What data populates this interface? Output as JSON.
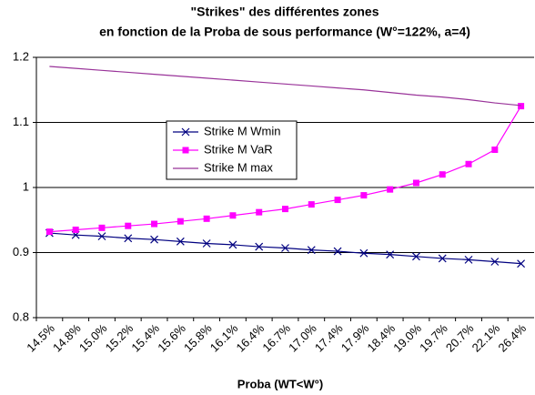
{
  "chart_data": {
    "type": "line",
    "title": [
      "\"Strikes\" des différentes zones",
      "en fonction de la  Proba de sous performance (W°=122%, a=4)"
    ],
    "x_label": "Proba (WT<W°)",
    "categories": [
      "14.5%",
      "14.8%",
      "15.0%",
      "15.2%",
      "15.4%",
      "15.6%",
      "15.8%",
      "16.1%",
      "16.4%",
      "16.7%",
      "17.0%",
      "17.4%",
      "17.9%",
      "18.4%",
      "19.0%",
      "19.7%",
      "20.7%",
      "22.1%",
      "26.4%"
    ],
    "series": [
      {
        "name": "Strike M Wmin",
        "color": "#000080",
        "marker": "x",
        "values": [
          0.93,
          0.927,
          0.925,
          0.922,
          0.92,
          0.917,
          0.914,
          0.912,
          0.909,
          0.907,
          0.904,
          0.902,
          0.899,
          0.897,
          0.894,
          0.891,
          0.889,
          0.886,
          0.883
        ]
      },
      {
        "name": "Strike M VaR",
        "color": "#ff00ff",
        "marker": "square",
        "values": [
          0.932,
          0.935,
          0.938,
          0.941,
          0.944,
          0.948,
          0.952,
          0.957,
          0.962,
          0.967,
          0.974,
          0.981,
          0.988,
          0.997,
          1.007,
          1.02,
          1.036,
          1.058,
          1.125
        ]
      },
      {
        "name": "Strike M max",
        "color": "#993399",
        "marker": "none",
        "values": [
          1.186,
          1.183,
          1.18,
          1.177,
          1.174,
          1.171,
          1.168,
          1.165,
          1.162,
          1.159,
          1.156,
          1.153,
          1.15,
          1.146,
          1.142,
          1.139,
          1.135,
          1.13,
          1.126
        ]
      }
    ],
    "ylim": [
      0.8,
      1.2
    ],
    "yticks": [
      0.8,
      0.9,
      1,
      1.1,
      1.2
    ],
    "grid": true
  }
}
